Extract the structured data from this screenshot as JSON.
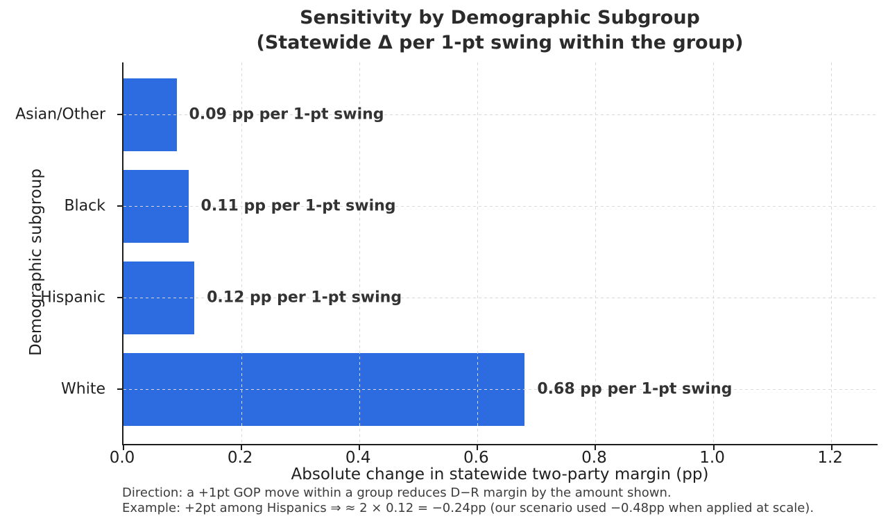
{
  "title": {
    "line1": "Sensitivity by Demographic Subgroup",
    "line2": "(Statewide Δ per 1-pt swing within the group)"
  },
  "chart_data": {
    "type": "bar",
    "orientation": "horizontal",
    "categories": [
      "Asian/Other",
      "Black",
      "Hispanic",
      "White"
    ],
    "values": [
      0.09,
      0.11,
      0.12,
      0.68
    ],
    "bar_labels": [
      "0.09 pp per 1-pt swing",
      "0.11 pp per 1-pt swing",
      "0.12 pp per 1-pt swing",
      "0.68 pp per 1-pt swing"
    ],
    "title": "Sensitivity by Demographic Subgroup (Statewide Δ per 1-pt swing within the group)",
    "xlabel": "Absolute change in statewide two-party margin (pp)",
    "ylabel": "Demographic subgroup",
    "x_ticks": [
      0.0,
      0.2,
      0.4,
      0.6,
      0.8,
      1.0,
      1.2
    ],
    "x_tick_labels": [
      "0.0",
      "0.2",
      "0.4",
      "0.6",
      "0.8",
      "1.0",
      "1.2"
    ],
    "xlim": [
      0,
      1.278
    ],
    "grid": "dashed",
    "legend": "none",
    "bar_color": "#2d6ce0",
    "grid_color": "#d9d9d9"
  },
  "footnotes": [
    "Direction: a +1pt GOP move within a group reduces D−R margin by the amount shown.",
    "Example: +2pt among Hispanics ⇒ ≈ 2 × 0.12 = −0.24pp (our scenario used −0.48pp when applied at scale)."
  ]
}
